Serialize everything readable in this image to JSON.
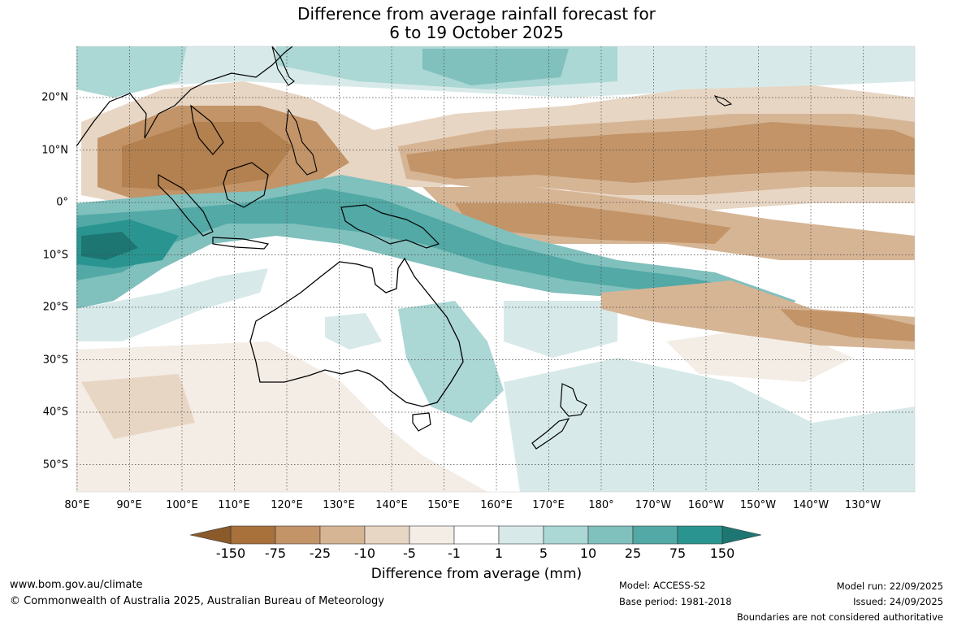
{
  "title": {
    "line1": "Difference from average rainfall forecast for",
    "line2": "6 to 19 October 2025"
  },
  "map": {
    "lon_labels": [
      "80°E",
      "90°E",
      "100°E",
      "110°E",
      "120°E",
      "130°E",
      "140°E",
      "150°E",
      "160°E",
      "170°E",
      "180°",
      "170°W",
      "160°W",
      "150°W",
      "140°W",
      "130°W"
    ],
    "lat_labels": [
      "20°N",
      "10°N",
      "0°",
      "10°S",
      "20°S",
      "30°S",
      "40°S",
      "50°S"
    ]
  },
  "colorbar": {
    "ticks": [
      "-150",
      "-75",
      "-25",
      "-10",
      "-5",
      "-1",
      "1",
      "5",
      "10",
      "25",
      "75",
      "150"
    ],
    "colors": [
      "#a8703a",
      "#c29468",
      "#d6b595",
      "#e8d6c4",
      "#f4ede6",
      "#ffffff",
      "#d7eae9",
      "#abd7d5",
      "#80c0bd",
      "#52a9a6",
      "#2a9590"
    ],
    "extend_low_color": "#8a5a2b",
    "extend_high_color": "#1d7672",
    "label": "Difference from average (mm)"
  },
  "footer": {
    "website": "www.bom.gov.au/climate",
    "copyright": "© Commonwealth of Australia 2025, Australian Bureau of Meteorology",
    "model": "Model: ACCESS-S2",
    "base_period": "Base period: 1981-2018",
    "model_run": "Model run: 22/09/2025",
    "issued": "Issued: 24/09/2025",
    "disclaimer": "Boundaries are not considered authoritative"
  }
}
